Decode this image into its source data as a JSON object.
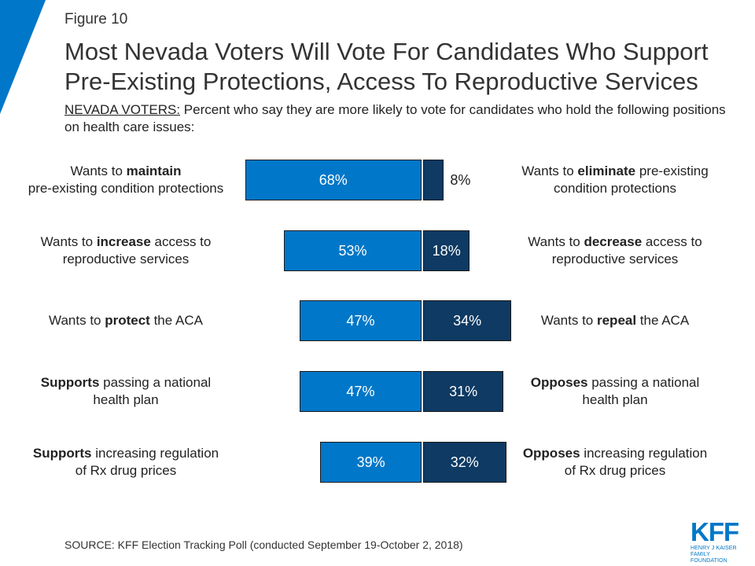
{
  "figure_label": "Figure 10",
  "title": "Most Nevada Voters Will Vote For Candidates Who Support Pre-Existing Protections, Access To Reproductive Services",
  "subtitle_lead": "NEVADA VOTERS:",
  "subtitle_rest": " Percent who say they are more likely to vote for candidates who hold the following positions on health care issues:",
  "source": "SOURCE: KFF Election Tracking Poll (conducted September 19-October 2, 2018)",
  "logo": {
    "text": "KFF",
    "line1": "HENRY J KAISER",
    "line2": "FAMILY FOUNDATION"
  },
  "colors": {
    "support": "#0077c8",
    "oppose": "#0e3a63",
    "accent": "#0077c8"
  },
  "chart_data": {
    "type": "bar",
    "orientation": "horizontal-diverging",
    "unit": "%",
    "series": [
      {
        "name": "",
        "values": [
          68,
          53,
          47,
          47,
          39
        ]
      },
      {
        "name": "",
        "values": [
          8,
          18,
          34,
          31,
          32
        ]
      }
    ],
    "rows": [
      {
        "left": [
          {
            "t": "Wants to "
          },
          {
            "t": "maintain",
            "b": true
          },
          {
            "t": "\npre-existing condition protections"
          }
        ],
        "right": [
          {
            "t": "Wants to "
          },
          {
            "t": "eliminate",
            "b": true
          },
          {
            "t": " pre-existing\ncondition protections"
          }
        ],
        "support": 68,
        "oppose": 8
      },
      {
        "left": [
          {
            "t": "Wants to "
          },
          {
            "t": "increase",
            "b": true
          },
          {
            "t": " access to\nreproductive services"
          }
        ],
        "right": [
          {
            "t": "Wants to "
          },
          {
            "t": "decrease",
            "b": true
          },
          {
            "t": " access to\nreproductive services"
          }
        ],
        "support": 53,
        "oppose": 18
      },
      {
        "left": [
          {
            "t": "Wants to "
          },
          {
            "t": "protect",
            "b": true
          },
          {
            "t": " the ACA"
          }
        ],
        "right": [
          {
            "t": "Wants to "
          },
          {
            "t": "repeal",
            "b": true
          },
          {
            "t": " the ACA"
          }
        ],
        "support": 47,
        "oppose": 34
      },
      {
        "left": [
          {
            "t": "Supports",
            "b": true
          },
          {
            "t": " passing a national\nhealth plan"
          }
        ],
        "right": [
          {
            "t": "Opposes",
            "b": true
          },
          {
            "t": " passing a national\nhealth plan"
          }
        ],
        "support": 47,
        "oppose": 31
      },
      {
        "left": [
          {
            "t": "Supports",
            "b": true
          },
          {
            "t": " increasing regulation\nof Rx drug prices"
          }
        ],
        "right": [
          {
            "t": "Opposes",
            "b": true
          },
          {
            "t": " increasing regulation\nof Rx drug prices"
          }
        ],
        "support": 39,
        "oppose": 32
      }
    ]
  }
}
